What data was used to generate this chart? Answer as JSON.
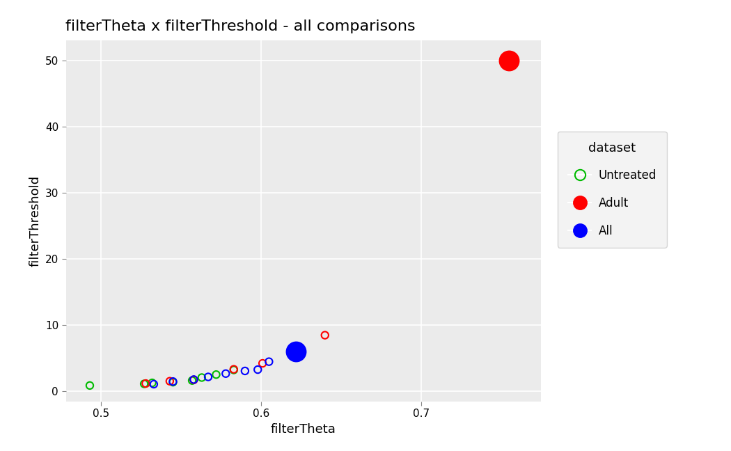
{
  "title": "filterTheta x filterThreshold - all comparisons",
  "xlabel": "filterTheta",
  "ylabel": "filterThreshold",
  "xlim": [
    0.478,
    0.775
  ],
  "ylim": [
    -1.5,
    53
  ],
  "yticks": [
    0,
    10,
    20,
    30,
    40,
    50
  ],
  "xticks": [
    0.5,
    0.6,
    0.7
  ],
  "background_color": "#EBEBEB",
  "grid_color": "#FFFFFF",
  "datasets": {
    "Untreated": {
      "color": "#00BB00",
      "points_open": [
        [
          0.493,
          0.9
        ],
        [
          0.527,
          1.15
        ],
        [
          0.532,
          1.3
        ],
        [
          0.545,
          1.4
        ],
        [
          0.557,
          1.65
        ],
        [
          0.563,
          2.1
        ],
        [
          0.572,
          2.55
        ],
        [
          0.583,
          3.25
        ]
      ],
      "points_filled": [],
      "size_small": 55,
      "size_large": 55
    },
    "Adult": {
      "color": "#FF0000",
      "points_open": [
        [
          0.528,
          1.2
        ],
        [
          0.543,
          1.55
        ],
        [
          0.558,
          1.75
        ],
        [
          0.583,
          3.35
        ],
        [
          0.601,
          4.25
        ],
        [
          0.64,
          8.5
        ]
      ],
      "points_filled": [
        [
          0.755,
          50.0
        ]
      ],
      "size_small": 55,
      "size_large": 400
    },
    "All": {
      "color": "#0000FF",
      "points_open": [
        [
          0.533,
          1.1
        ],
        [
          0.545,
          1.5
        ],
        [
          0.558,
          1.8
        ],
        [
          0.567,
          2.2
        ],
        [
          0.578,
          2.7
        ],
        [
          0.59,
          3.1
        ],
        [
          0.598,
          3.3
        ],
        [
          0.605,
          4.5
        ]
      ],
      "points_filled": [
        [
          0.622,
          6.0
        ]
      ],
      "size_small": 55,
      "size_large": 400
    }
  },
  "legend_title": "dataset",
  "title_fontsize": 16,
  "label_fontsize": 13,
  "tick_fontsize": 11,
  "legend_fontsize": 12
}
